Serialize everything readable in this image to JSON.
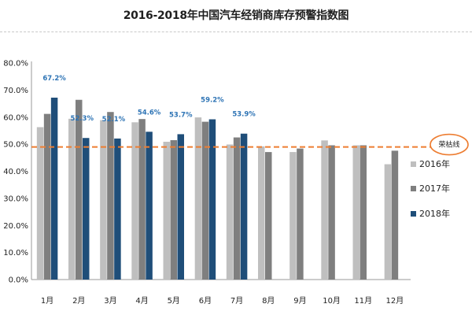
{
  "title": "2016-2018年中国汽车经销商库存预警指数图",
  "chart_data": {
    "type": "bar",
    "title": "2016-2018年中国汽车经销商库存预警指数图",
    "categories": [
      "1月",
      "2月",
      "3月",
      "4月",
      "5月",
      "6月",
      "7月",
      "8月",
      "9月",
      "10月",
      "11月",
      "12月"
    ],
    "series": [
      {
        "name": "2016年",
        "color": "#bfbfbf",
        "values": [
          56.3,
          59.4,
          58.9,
          58.1,
          50.9,
          59.9,
          49.9,
          49.2,
          47.1,
          51.4,
          49.6,
          42.6
        ]
      },
      {
        "name": "2017年",
        "color": "#7f7f7f",
        "values": [
          61.2,
          66.4,
          61.9,
          59.3,
          51.5,
          58.3,
          52.5,
          47.1,
          48.4,
          49.6,
          49.6,
          47.6
        ]
      },
      {
        "name": "2018年",
        "color": "#1f4e79",
        "values": [
          67.2,
          52.3,
          52.1,
          54.6,
          53.7,
          59.2,
          53.9,
          null,
          null,
          null,
          null,
          null
        ]
      }
    ],
    "data_labels": [
      "67.2%",
      "52.3%",
      "52.1%",
      "54.6%",
      "53.7%",
      "59.2%",
      "53.9%"
    ],
    "reference_line": {
      "value": 49,
      "label": "荣枯线",
      "color": "#ed7d31",
      "style": "dashed"
    },
    "y_ticks": [
      "0.0%",
      "10.0%",
      "20.0%",
      "30.0%",
      "40.0%",
      "50.0%",
      "60.0%",
      "70.0%",
      "80.0%"
    ],
    "ylim": [
      0,
      80
    ],
    "xlabel": "",
    "ylabel": "",
    "legend_position": "right",
    "grid": false
  }
}
